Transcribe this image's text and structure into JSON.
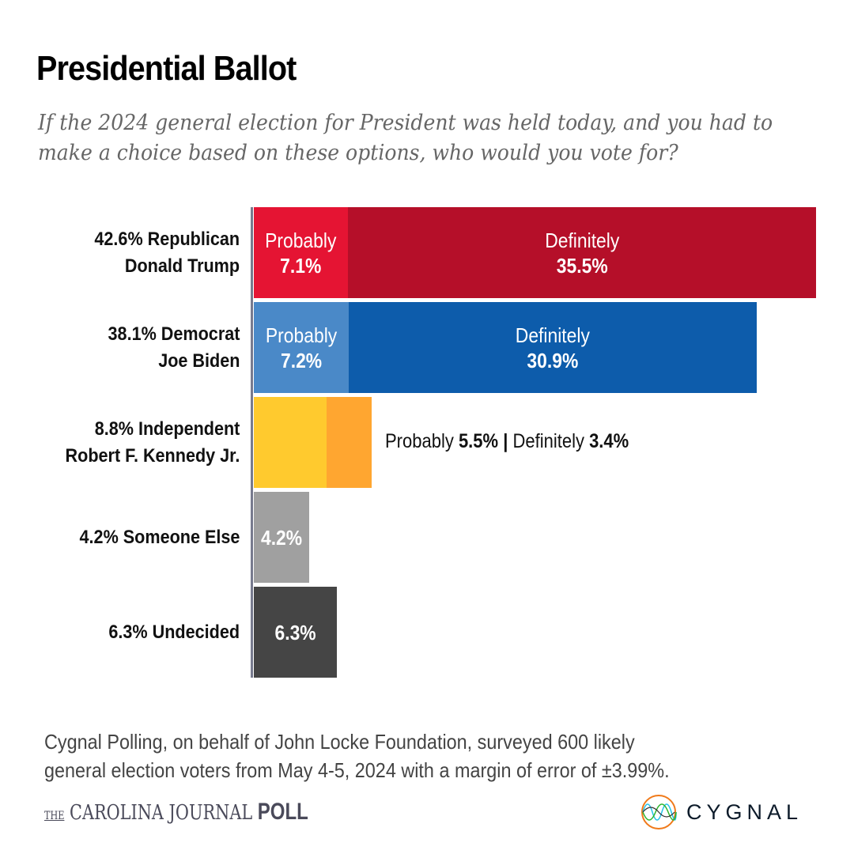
{
  "title": "Presidential Ballot",
  "subtitle": "If the 2024 general election for President was held today, and you had to make a choice based on these options, who would you vote for?",
  "chart_data": {
    "type": "bar",
    "orientation": "horizontal-stacked",
    "unit": "%",
    "categories": [
      {
        "line1": "42.6% Republican",
        "line2": "Donald Trump",
        "total": 42.6,
        "segments": [
          {
            "name": "Probably",
            "label": "Probably",
            "value_label": "7.1%",
            "value": 7.1,
            "color": "#e51433"
          },
          {
            "name": "Definitely",
            "label": "Definitely",
            "value_label": "35.5%",
            "value": 35.5,
            "color": "#b50f29"
          }
        ]
      },
      {
        "line1": "38.1% Democrat",
        "line2": "Joe Biden",
        "total": 38.1,
        "segments": [
          {
            "name": "Probably",
            "label": "Probably",
            "value_label": "7.2%",
            "value": 7.2,
            "color": "#4a89c8"
          },
          {
            "name": "Definitely",
            "label": "Definitely",
            "value_label": "30.9%",
            "value": 30.9,
            "color": "#0d5cab"
          }
        ]
      },
      {
        "line1": "8.8% Independent",
        "line2": "Robert F. Kennedy Jr.",
        "total": 8.8,
        "segments": [
          {
            "name": "Probably",
            "value": 5.5,
            "color": "#ffca2e"
          },
          {
            "name": "Definitely",
            "value": 3.4,
            "color": "#ffa630"
          }
        ],
        "note": {
          "p_label": "Probably ",
          "p_value": "5.5%",
          "sep": " | ",
          "d_label": "Definitely ",
          "d_value": "3.4%"
        }
      },
      {
        "line1": "4.2% Someone Else",
        "line2": "",
        "total": 4.2,
        "segments": [
          {
            "name": "Total",
            "value_label": "4.2%",
            "value": 4.2,
            "color": "#a0a0a0"
          }
        ]
      },
      {
        "line1": "6.3% Undecided",
        "line2": "",
        "total": 6.3,
        "segments": [
          {
            "name": "Total",
            "value_label": "6.3%",
            "value": 6.3,
            "color": "#454545"
          }
        ]
      }
    ],
    "xlim": [
      0,
      42.6
    ]
  },
  "footer": {
    "line1": "Cygnal Polling, on behalf of John Locke Foundation, surveyed 600 likely",
    "line2": "general election voters from May 4-5, 2024 with a margin of error of ±3.99%.",
    "cj_the": "THE",
    "cj_name": "CAROLINA JOURNAL ",
    "cj_poll": "POLL",
    "cygnal": "CYGNAL"
  }
}
